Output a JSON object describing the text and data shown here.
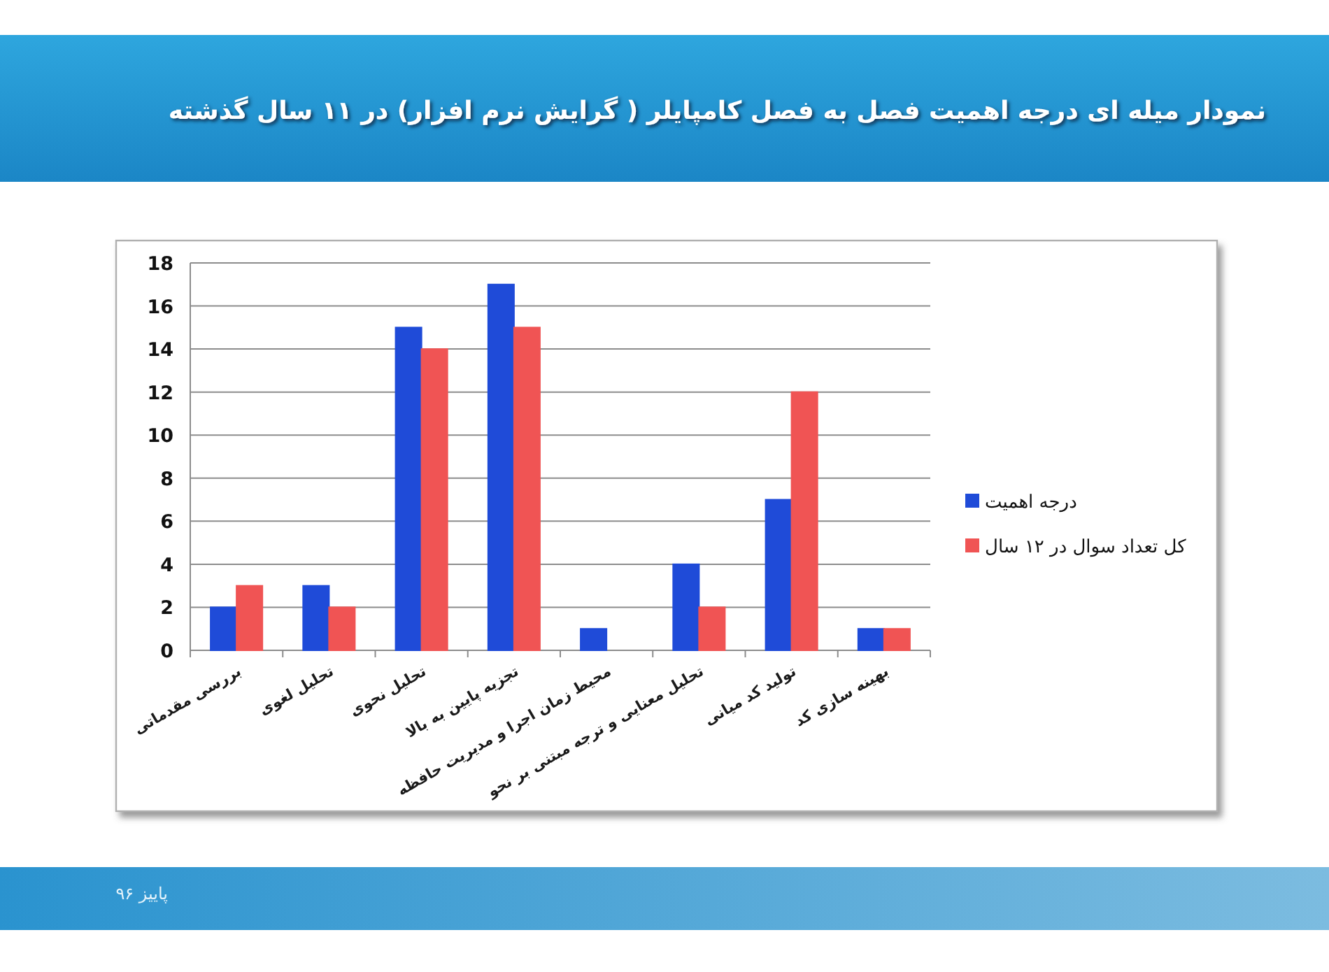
{
  "chart_data": {
    "type": "bar",
    "title": "نمودار میله ای درجه اهمیت فصل به فصل کامپایلر ( گرایش نرم افزار) در ۱۱ سال گذشته",
    "categories": [
      "بررسی مقدماتی",
      "تحلیل لغوی",
      "تحلیل نحوی",
      "تجزیه پایین به بالا",
      "محیط زمان اجرا و مدیریت حافظه",
      "تحلیل معنایی و ترجه مبتنی بر نحو",
      "تولید کد میانی",
      "بهینه سازی کد"
    ],
    "series": [
      {
        "name": "درجه اهمیت",
        "color": "#1f4bd8",
        "values": [
          2,
          3,
          15,
          17,
          1,
          4,
          7,
          1
        ]
      },
      {
        "name": "کل تعداد سوال در ۱۲ سال",
        "color": "#f05454",
        "values": [
          3,
          2,
          14,
          15,
          0,
          2,
          12,
          1
        ]
      }
    ],
    "ylim": [
      0,
      18
    ],
    "yticks": [
      0,
      2,
      4,
      6,
      8,
      10,
      12,
      14,
      16,
      18
    ],
    "grid": "y",
    "legend": "right",
    "annotations": [
      "پاییز ۹۶"
    ]
  }
}
